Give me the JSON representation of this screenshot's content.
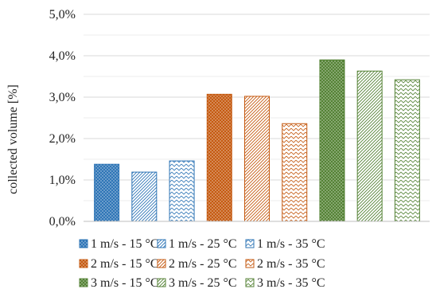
{
  "chart_data": {
    "type": "bar",
    "title": "",
    "xlabel": "",
    "ylabel": "collected volume  [%]",
    "ylim": [
      0,
      5
    ],
    "y_ticks": [
      "0,0%",
      "1,0%",
      "2,0%",
      "3,0%",
      "4,0%",
      "5,0%"
    ],
    "grid": true,
    "legend_position": "bottom",
    "series": [
      {
        "name": "1 m/s - 15 °C",
        "values": [
          1.38
        ],
        "color": "#2e75b6",
        "pattern": "dots"
      },
      {
        "name": "1 m/s - 25 °C",
        "values": [
          1.19
        ],
        "color": "#2e75b6",
        "pattern": "diagonal-hatch"
      },
      {
        "name": "1 m/s - 35 °C",
        "values": [
          1.46
        ],
        "color": "#2e75b6",
        "pattern": "wave"
      },
      {
        "name": "2 m/s - 15 °C",
        "values": [
          3.07
        ],
        "color": "#c55a11",
        "pattern": "dots"
      },
      {
        "name": "2 m/s - 25 °C",
        "values": [
          3.02
        ],
        "color": "#c55a11",
        "pattern": "diagonal-hatch"
      },
      {
        "name": "2 m/s - 35 °C",
        "values": [
          2.36
        ],
        "color": "#c55a11",
        "pattern": "wave"
      },
      {
        "name": "3 m/s - 15 °C",
        "values": [
          3.9
        ],
        "color": "#548235",
        "pattern": "dots"
      },
      {
        "name": "3 m/s - 25 °C",
        "values": [
          3.63
        ],
        "color": "#548235",
        "pattern": "diagonal-hatch"
      },
      {
        "name": "3 m/s - 35 °C",
        "values": [
          3.42
        ],
        "color": "#548235",
        "pattern": "wave"
      }
    ]
  }
}
